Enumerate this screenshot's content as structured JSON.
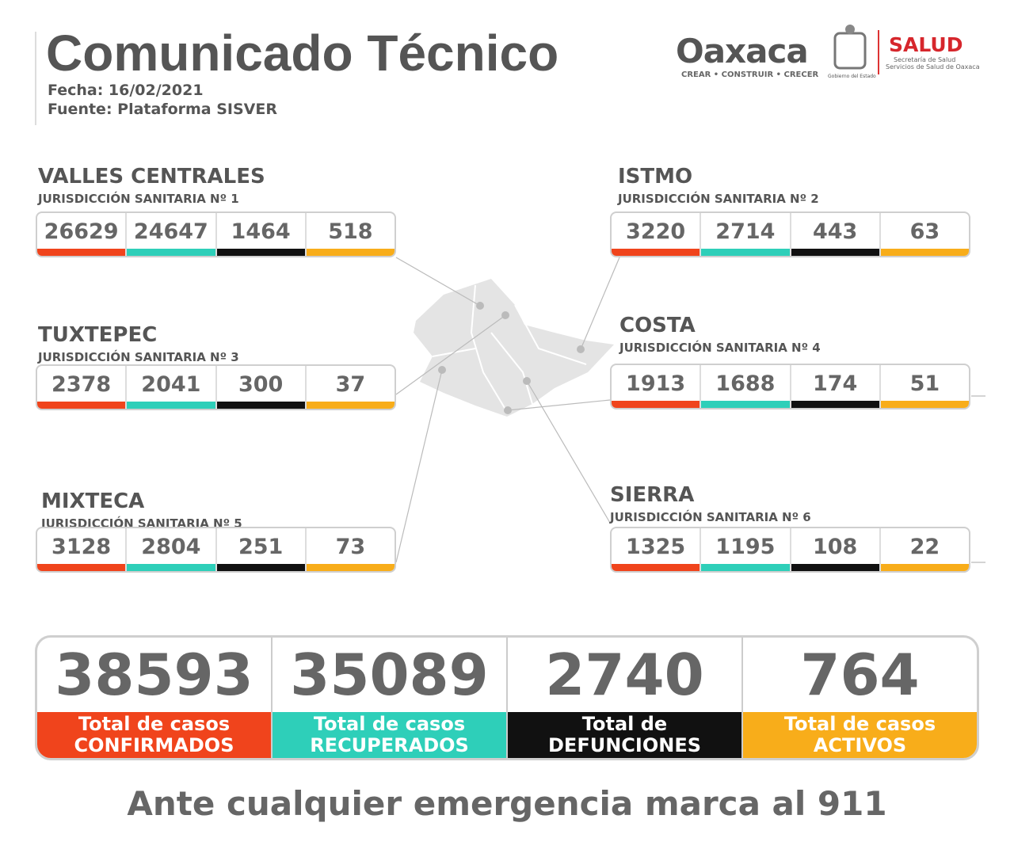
{
  "header": {
    "title": "Comunicado Técnico",
    "date": "Fecha: 16/02/2021",
    "source": "Fuente: Plataforma SISVER"
  },
  "logos": {
    "state": "Oaxaca",
    "motto": "CREAR • CONSTRUIR • CRECER",
    "government": "Gobierno del Estado",
    "health": "SALUD",
    "health_line1": "Secretaría de Salud",
    "health_line2": "Servicios de Salud de Oaxaca"
  },
  "regions": [
    {
      "name": "VALLES CENTRALES",
      "subtitle": "JURISDICCIÓN SANITARIA Nº 1",
      "values": [
        26629,
        24647,
        1464,
        518
      ]
    },
    {
      "name": "ISTMO",
      "subtitle": "JURISDICCIÓN SANITARIA Nº 2",
      "values": [
        3220,
        2714,
        443,
        63
      ]
    },
    {
      "name": "TUXTEPEC",
      "subtitle": "JURISDICCIÓN SANITARIA Nº 3",
      "values": [
        2378,
        2041,
        300,
        37
      ]
    },
    {
      "name": "COSTA",
      "subtitle": "JURISDICCIÓN SANITARIA Nº 4",
      "values": [
        1913,
        1688,
        174,
        51
      ]
    },
    {
      "name": "MIXTECA",
      "subtitle": "JURISDICCIÓN SANITARIA Nº 5",
      "values": [
        3128,
        2804,
        251,
        73
      ]
    },
    {
      "name": "SIERRA",
      "subtitle": "JURISDICCIÓN SANITARIA Nº 6",
      "values": [
        1325,
        1195,
        108,
        22
      ]
    }
  ],
  "totals": [
    {
      "value": 38593,
      "label": "Total de casos",
      "label2": "CONFIRMADOS"
    },
    {
      "value": 35089,
      "label": "Total de casos",
      "label2": "RECUPERADOS"
    },
    {
      "value": 2740,
      "label": "Total de",
      "label2": "DEFUNCIONES"
    },
    {
      "value": 764,
      "label": "Total de casos",
      "label2": "ACTIVOS"
    }
  ],
  "footer": "Ante cualquier emergencia marca al 911"
}
